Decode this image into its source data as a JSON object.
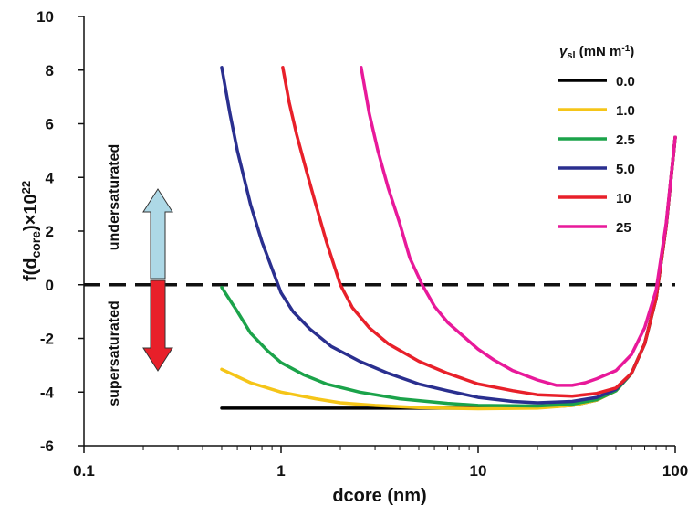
{
  "chart_data": {
    "type": "line",
    "xscale": "log",
    "xlim": [
      0.1,
      100
    ],
    "ylim": [
      -6,
      10
    ],
    "x_ticks": [
      0.1,
      1,
      10,
      100
    ],
    "x_tick_labels": [
      "0.1",
      "1",
      "10",
      "100"
    ],
    "y_ticks": [
      -6,
      -4,
      -2,
      0,
      2,
      4,
      6,
      8,
      10
    ],
    "y_tick_labels": [
      "-6",
      "-4",
      "-2",
      "0",
      "2",
      "4",
      "6",
      "8",
      "10"
    ],
    "xlabel": "dcore (nm)",
    "ylabel": {
      "prefix": "f(d",
      "sub": "core",
      "mid": ")×10",
      "sup": "22"
    },
    "grid": false,
    "legend": {
      "title": {
        "symbol": "γ",
        "sub": "sl",
        "unit_pre": " (mN m",
        "sup": "-1",
        "unit_post": ")"
      },
      "placement": "top-right"
    },
    "zero_line": {
      "y": 0,
      "style": "dashed"
    },
    "annotations": {
      "undersaturated": "undersaturated",
      "supersaturated": "supersaturated",
      "up_arrow_color": "#add8e6",
      "down_arrow_color": "#e8202a"
    },
    "series": [
      {
        "name": "0.0",
        "color": "#000000",
        "points": [
          [
            0.5,
            -4.6
          ],
          [
            1,
            -4.6
          ],
          [
            2,
            -4.6
          ],
          [
            5,
            -4.6
          ],
          [
            10,
            -4.6
          ],
          [
            20,
            -4.58
          ],
          [
            30,
            -4.5
          ],
          [
            40,
            -4.3
          ],
          [
            50,
            -3.95
          ],
          [
            60,
            -3.3
          ],
          [
            70,
            -2.2
          ],
          [
            80,
            -0.5
          ],
          [
            90,
            2.2
          ],
          [
            100,
            5.5
          ]
        ]
      },
      {
        "name": "1.0",
        "color": "#f5c518",
        "points": [
          [
            0.5,
            -3.15
          ],
          [
            0.7,
            -3.65
          ],
          [
            1,
            -4.0
          ],
          [
            1.5,
            -4.25
          ],
          [
            2,
            -4.4
          ],
          [
            3,
            -4.5
          ],
          [
            5,
            -4.58
          ],
          [
            10,
            -4.62
          ],
          [
            20,
            -4.6
          ],
          [
            30,
            -4.5
          ],
          [
            40,
            -4.3
          ],
          [
            50,
            -3.95
          ],
          [
            60,
            -3.3
          ],
          [
            70,
            -2.2
          ],
          [
            80,
            -0.5
          ],
          [
            90,
            2.2
          ],
          [
            100,
            5.5
          ]
        ]
      },
      {
        "name": "2.5",
        "color": "#1ba34a",
        "points": [
          [
            0.5,
            -0.1
          ],
          [
            0.6,
            -1.0
          ],
          [
            0.7,
            -1.8
          ],
          [
            0.85,
            -2.45
          ],
          [
            1,
            -2.9
          ],
          [
            1.3,
            -3.35
          ],
          [
            1.7,
            -3.7
          ],
          [
            2.5,
            -4.0
          ],
          [
            4,
            -4.25
          ],
          [
            7,
            -4.42
          ],
          [
            10,
            -4.5
          ],
          [
            20,
            -4.52
          ],
          [
            30,
            -4.45
          ],
          [
            40,
            -4.28
          ],
          [
            50,
            -3.95
          ],
          [
            60,
            -3.3
          ],
          [
            70,
            -2.2
          ],
          [
            80,
            -0.5
          ],
          [
            90,
            2.2
          ],
          [
            100,
            5.5
          ]
        ]
      },
      {
        "name": "5.0",
        "color": "#2a2f8f",
        "points": [
          [
            0.5,
            8.1
          ],
          [
            0.55,
            6.4
          ],
          [
            0.6,
            5.0
          ],
          [
            0.7,
            3.0
          ],
          [
            0.8,
            1.6
          ],
          [
            0.9,
            0.6
          ],
          [
            1,
            -0.3
          ],
          [
            1.15,
            -1.0
          ],
          [
            1.4,
            -1.65
          ],
          [
            1.8,
            -2.3
          ],
          [
            2.5,
            -2.85
          ],
          [
            3.5,
            -3.3
          ],
          [
            5,
            -3.7
          ],
          [
            7,
            -3.95
          ],
          [
            10,
            -4.2
          ],
          [
            15,
            -4.35
          ],
          [
            20,
            -4.4
          ],
          [
            30,
            -4.35
          ],
          [
            40,
            -4.2
          ],
          [
            50,
            -3.9
          ],
          [
            60,
            -3.3
          ],
          [
            70,
            -2.2
          ],
          [
            80,
            -0.5
          ],
          [
            90,
            2.2
          ],
          [
            100,
            5.5
          ]
        ]
      },
      {
        "name": "10",
        "color": "#e8202a",
        "points": [
          [
            1.02,
            8.1
          ],
          [
            1.1,
            6.8
          ],
          [
            1.2,
            5.6
          ],
          [
            1.35,
            4.2
          ],
          [
            1.5,
            3.0
          ],
          [
            1.7,
            1.6
          ],
          [
            2,
            0.0
          ],
          [
            2.3,
            -0.85
          ],
          [
            2.8,
            -1.6
          ],
          [
            3.5,
            -2.2
          ],
          [
            5,
            -2.85
          ],
          [
            7,
            -3.3
          ],
          [
            10,
            -3.7
          ],
          [
            15,
            -3.95
          ],
          [
            20,
            -4.1
          ],
          [
            30,
            -4.15
          ],
          [
            40,
            -4.05
          ],
          [
            50,
            -3.85
          ],
          [
            60,
            -3.3
          ],
          [
            70,
            -2.2
          ],
          [
            80,
            -0.5
          ],
          [
            90,
            2.2
          ],
          [
            100,
            5.5
          ]
        ]
      },
      {
        "name": "25",
        "color": "#e8199a",
        "points": [
          [
            2.55,
            8.1
          ],
          [
            2.8,
            6.4
          ],
          [
            3.1,
            5.0
          ],
          [
            3.5,
            3.6
          ],
          [
            4,
            2.3
          ],
          [
            4.5,
            1.0
          ],
          [
            5.2,
            0.0
          ],
          [
            6,
            -0.8
          ],
          [
            7,
            -1.4
          ],
          [
            8.5,
            -1.95
          ],
          [
            10,
            -2.4
          ],
          [
            12,
            -2.8
          ],
          [
            15,
            -3.2
          ],
          [
            20,
            -3.55
          ],
          [
            25,
            -3.75
          ],
          [
            30,
            -3.75
          ],
          [
            35,
            -3.65
          ],
          [
            40,
            -3.5
          ],
          [
            50,
            -3.2
          ],
          [
            60,
            -2.6
          ],
          [
            70,
            -1.6
          ],
          [
            80,
            -0.2
          ],
          [
            90,
            2.3
          ],
          [
            100,
            5.5
          ]
        ]
      }
    ]
  }
}
